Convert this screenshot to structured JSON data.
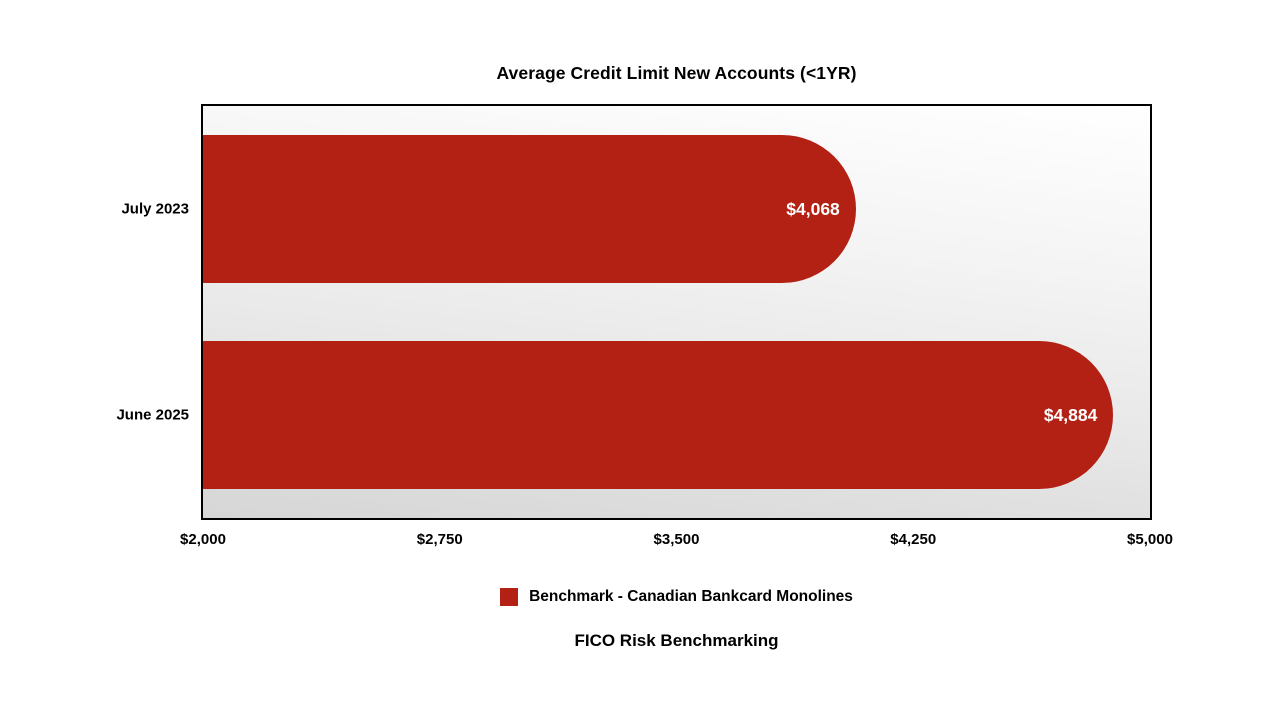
{
  "page": {
    "background": "#ffffff"
  },
  "chart": {
    "title": "Average Credit Limit New Accounts (<1YR)",
    "footer": "FICO Risk Benchmarking",
    "legend": {
      "label": "Benchmark - Canadian Bankcard Monolines",
      "swatch_color": "#b32114"
    }
  },
  "chart_data": {
    "type": "bar",
    "orientation": "horizontal",
    "title": "Average Credit Limit New Accounts (<1YR)",
    "categories": [
      "July 2023",
      "June 2025"
    ],
    "values": [
      4068,
      4884
    ],
    "value_labels": [
      "$4,068",
      "$4,884"
    ],
    "series": [
      {
        "name": "Benchmark - Canadian Bankcard Monolines",
        "values": [
          4068,
          4884
        ]
      }
    ],
    "x_ticks": [
      "$2,000",
      "$2,750",
      "$3,500",
      "$4,250",
      "$5,000"
    ],
    "x_tick_values": [
      2000,
      2750,
      3500,
      4250,
      5000
    ],
    "xlim": [
      2000,
      5000
    ],
    "xlabel": "",
    "ylabel": "",
    "grid": false,
    "bar_color": "#b32114",
    "bar_label_color": "#ffffff",
    "plot_background": "gradient-white-to-gray",
    "legend_position": "bottom"
  }
}
